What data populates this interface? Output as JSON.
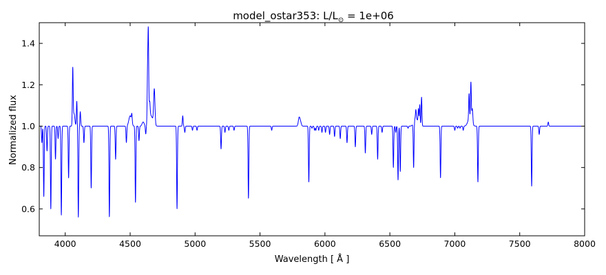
{
  "chart_data": {
    "type": "line",
    "title": {
      "main": "model_ostar353: L/L",
      "subscript": "⊙",
      "suffix": " = 1e+06"
    },
    "xlabel": "Wavelength [ Å ]",
    "ylabel": "Normalized flux",
    "xlim": [
      3800,
      8000
    ],
    "ylim": [
      0.47,
      1.5
    ],
    "xticks": [
      4000,
      4500,
      5000,
      5500,
      6000,
      6500,
      7000,
      7500,
      8000
    ],
    "yticks": [
      0.6,
      0.8,
      1.0,
      1.2,
      1.4
    ],
    "ytick_labels": [
      "0.6",
      "0.8",
      "1.0",
      "1.2",
      "1.4"
    ],
    "grid": false,
    "series": [
      {
        "color": "#0000ff",
        "continuum": 1.0,
        "features": [
          {
            "center": 3820,
            "depth": -0.08,
            "width": 3
          },
          {
            "center": 3835,
            "depth": -0.34,
            "width": 3
          },
          {
            "center": 3860,
            "depth": -0.12,
            "width": 3
          },
          {
            "center": 3889,
            "depth": -0.4,
            "width": 3
          },
          {
            "center": 3925,
            "depth": -0.16,
            "width": 3
          },
          {
            "center": 3945,
            "depth": -0.06,
            "width": 3
          },
          {
            "center": 3970,
            "depth": -0.43,
            "width": 3
          },
          {
            "center": 4026,
            "depth": -0.25,
            "width": 3
          },
          {
            "center": 4058,
            "depth": 0.27,
            "width": 3
          },
          {
            "center": 4068,
            "depth": 0.06,
            "width": 6
          },
          {
            "center": 4089,
            "depth": 0.12,
            "width": 3
          },
          {
            "center": 4101,
            "depth": -0.44,
            "width": 3
          },
          {
            "center": 4116,
            "depth": 0.07,
            "width": 3
          },
          {
            "center": 4144,
            "depth": -0.08,
            "width": 3
          },
          {
            "center": 4200,
            "depth": -0.3,
            "width": 3
          },
          {
            "center": 4340,
            "depth": -0.44,
            "width": 3
          },
          {
            "center": 4388,
            "depth": -0.16,
            "width": 3
          },
          {
            "center": 4471,
            "depth": -0.08,
            "width": 3
          },
          {
            "center": 4500,
            "depth": 0.05,
            "width": 10
          },
          {
            "center": 4513,
            "depth": 0.04,
            "width": 3
          },
          {
            "center": 4541,
            "depth": -0.37,
            "width": 3
          },
          {
            "center": 4568,
            "depth": -0.07,
            "width": 3
          },
          {
            "center": 4600,
            "depth": 0.02,
            "width": 8
          },
          {
            "center": 4620,
            "depth": -0.04,
            "width": 3
          },
          {
            "center": 4634,
            "depth": 0.24,
            "width": 3
          },
          {
            "center": 4640,
            "depth": 0.42,
            "width": 3
          },
          {
            "center": 4650,
            "depth": 0.08,
            "width": 4
          },
          {
            "center": 4686,
            "depth": 0.17,
            "width": 5
          },
          {
            "center": 4660,
            "depth": 0.05,
            "width": 15
          },
          {
            "center": 4861,
            "depth": -0.4,
            "width": 3
          },
          {
            "center": 4905,
            "depth": 0.05,
            "width": 3
          },
          {
            "center": 4921,
            "depth": -0.03,
            "width": 3
          },
          {
            "center": 4980,
            "depth": -0.02,
            "width": 3
          },
          {
            "center": 5015,
            "depth": -0.02,
            "width": 3
          },
          {
            "center": 5200,
            "depth": -0.11,
            "width": 3
          },
          {
            "center": 5230,
            "depth": -0.03,
            "width": 3
          },
          {
            "center": 5260,
            "depth": -0.02,
            "width": 3
          },
          {
            "center": 5300,
            "depth": -0.02,
            "width": 3
          },
          {
            "center": 5411,
            "depth": -0.35,
            "width": 3
          },
          {
            "center": 5590,
            "depth": -0.02,
            "width": 3
          },
          {
            "center": 5801,
            "depth": 0.04,
            "width": 6
          },
          {
            "center": 5812,
            "depth": 0.02,
            "width": 6
          },
          {
            "center": 5876,
            "depth": -0.27,
            "width": 3
          },
          {
            "center": 5900,
            "depth": -0.01,
            "width": 3
          },
          {
            "center": 5920,
            "depth": -0.02,
            "width": 3
          },
          {
            "center": 5930,
            "depth": -0.02,
            "width": 3
          },
          {
            "center": 5952,
            "depth": -0.02,
            "width": 3
          },
          {
            "center": 5977,
            "depth": -0.03,
            "width": 3
          },
          {
            "center": 6004,
            "depth": -0.03,
            "width": 3
          },
          {
            "center": 6036,
            "depth": -0.04,
            "width": 3
          },
          {
            "center": 6074,
            "depth": -0.05,
            "width": 3
          },
          {
            "center": 6118,
            "depth": -0.06,
            "width": 3
          },
          {
            "center": 6170,
            "depth": -0.08,
            "width": 3
          },
          {
            "center": 6234,
            "depth": -0.1,
            "width": 3
          },
          {
            "center": 6311,
            "depth": -0.13,
            "width": 3
          },
          {
            "center": 6360,
            "depth": -0.04,
            "width": 3
          },
          {
            "center": 6406,
            "depth": -0.16,
            "width": 3
          },
          {
            "center": 6440,
            "depth": -0.03,
            "width": 3
          },
          {
            "center": 6527,
            "depth": -0.2,
            "width": 3
          },
          {
            "center": 6545,
            "depth": -0.03,
            "width": 3
          },
          {
            "center": 6563,
            "depth": -0.26,
            "width": 3
          },
          {
            "center": 6580,
            "depth": -0.22,
            "width": 3
          },
          {
            "center": 6640,
            "depth": -0.01,
            "width": 3
          },
          {
            "center": 6683,
            "depth": -0.22,
            "width": 3
          },
          {
            "center": 6700,
            "depth": 0.04,
            "width": 3
          },
          {
            "center": 6720,
            "depth": 0.07,
            "width": 3
          },
          {
            "center": 6730,
            "depth": 0.1,
            "width": 3
          },
          {
            "center": 6744,
            "depth": 0.14,
            "width": 3
          },
          {
            "center": 6700,
            "depth": 0.04,
            "width": 14
          },
          {
            "center": 6890,
            "depth": -0.25,
            "width": 3
          },
          {
            "center": 7000,
            "depth": -0.02,
            "width": 3
          },
          {
            "center": 7022,
            "depth": -0.01,
            "width": 3
          },
          {
            "center": 7040,
            "depth": -0.01,
            "width": 3
          },
          {
            "center": 7065,
            "depth": -0.02,
            "width": 3
          },
          {
            "center": 7110,
            "depth": 0.12,
            "width": 3
          },
          {
            "center": 7124,
            "depth": 0.18,
            "width": 3
          },
          {
            "center": 7135,
            "depth": 0.07,
            "width": 4
          },
          {
            "center": 7115,
            "depth": 0.04,
            "width": 14
          },
          {
            "center": 7178,
            "depth": -0.27,
            "width": 3
          },
          {
            "center": 7592,
            "depth": -0.29,
            "width": 3
          },
          {
            "center": 7650,
            "depth": -0.04,
            "width": 3
          },
          {
            "center": 7720,
            "depth": 0.02,
            "width": 3
          }
        ]
      }
    ]
  }
}
